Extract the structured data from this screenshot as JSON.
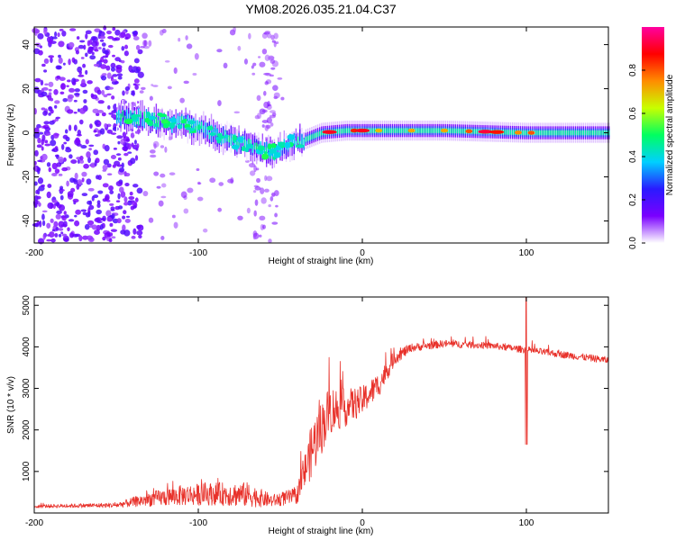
{
  "title": "YM08.2026.035.21.04.C37",
  "chart_data": [
    {
      "type": "heatmap",
      "name": "spectrogram",
      "xlabel": "Height of straight line (km)",
      "ylabel": "Frequency (Hz)",
      "xlim": [
        -200,
        150
      ],
      "ylim": [
        -50,
        48
      ],
      "xticks": [
        "-200",
        "-100",
        "0",
        "100"
      ],
      "yticks": [
        "-40",
        "-20",
        "0",
        "20",
        "40"
      ],
      "colorbar": {
        "label": "Normalized spectral amplitude",
        "range": [
          0,
          1
        ],
        "ticks": [
          "0.0",
          "0.2",
          "0.4",
          "0.6",
          "0.8"
        ],
        "colors": [
          "#ffffff",
          "#7a00ff",
          "#2a1aff",
          "#00d0ff",
          "#00ff60",
          "#c8ff00",
          "#ff8c00",
          "#ff0000",
          "#ff00a0"
        ]
      },
      "ridge": [
        {
          "x": -150,
          "f": 8
        },
        {
          "x": -130,
          "f": 6
        },
        {
          "x": -110,
          "f": 4
        },
        {
          "x": -95,
          "f": 1
        },
        {
          "x": -80,
          "f": -3
        },
        {
          "x": -65,
          "f": -7
        },
        {
          "x": -55,
          "f": -9
        },
        {
          "x": -45,
          "f": -5
        },
        {
          "x": -35,
          "f": -3
        },
        {
          "x": -25,
          "f": 0
        },
        {
          "x": -10,
          "f": 1
        },
        {
          "x": 0,
          "f": 1
        },
        {
          "x": 50,
          "f": 1
        },
        {
          "x": 100,
          "f": 0
        },
        {
          "x": 150,
          "f": 0
        }
      ]
    },
    {
      "type": "line",
      "name": "snr",
      "xlabel": "Height of straight line (km)",
      "ylabel": "SNR (10 * v/v)",
      "xlim": [
        -200,
        150
      ],
      "ylim": [
        0,
        5200
      ],
      "xticks": [
        "-200",
        "-100",
        "0",
        "100"
      ],
      "yticks": [
        "1000",
        "2000",
        "3000",
        "4000",
        "5000"
      ],
      "color": "#e8312a",
      "envelope": [
        {
          "x": -200,
          "base": 150,
          "amp": 80
        },
        {
          "x": -150,
          "base": 170,
          "amp": 120
        },
        {
          "x": -130,
          "base": 280,
          "amp": 350
        },
        {
          "x": -110,
          "base": 350,
          "amp": 500
        },
        {
          "x": -90,
          "base": 380,
          "amp": 550
        },
        {
          "x": -70,
          "base": 350,
          "amp": 600
        },
        {
          "x": -55,
          "base": 250,
          "amp": 300
        },
        {
          "x": -40,
          "base": 350,
          "amp": 400
        },
        {
          "x": -30,
          "base": 1400,
          "amp": 1400
        },
        {
          "x": -20,
          "base": 2300,
          "amp": 1200
        },
        {
          "x": -10,
          "base": 2400,
          "amp": 900
        },
        {
          "x": 0,
          "base": 2600,
          "amp": 700
        },
        {
          "x": 10,
          "base": 3000,
          "amp": 600
        },
        {
          "x": 20,
          "base": 3700,
          "amp": 350
        },
        {
          "x": 30,
          "base": 3950,
          "amp": 200
        },
        {
          "x": 50,
          "base": 4050,
          "amp": 180
        },
        {
          "x": 80,
          "base": 4000,
          "amp": 160
        },
        {
          "x": 100,
          "base": 3900,
          "amp": 170
        },
        {
          "x": 120,
          "base": 3800,
          "amp": 170
        },
        {
          "x": 150,
          "base": 3650,
          "amp": 170
        }
      ],
      "spike": {
        "x": 100,
        "min": 1650,
        "max": 5200
      }
    }
  ]
}
